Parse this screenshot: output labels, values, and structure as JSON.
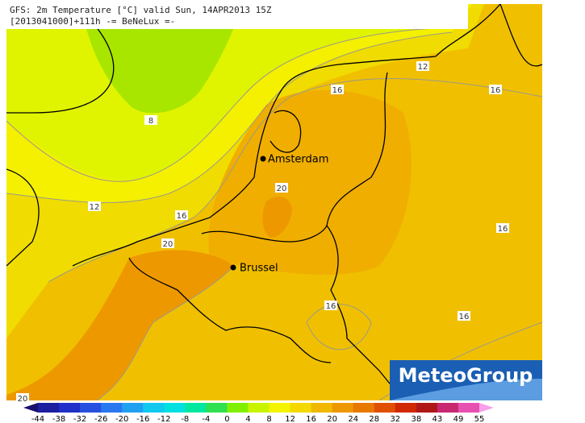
{
  "header": {
    "line1": "GFS: 2m Temperature [°C] valid Sun, 14APR2013 15Z",
    "line2": "[2013041000]+111h -= BeNeLux =-"
  },
  "cities": [
    {
      "label": "Amsterdam"
    },
    {
      "label": "Brussel"
    }
  ],
  "contour_labels": [
    12,
    16,
    16,
    8,
    12,
    16,
    20,
    20,
    16,
    16,
    16,
    20
  ],
  "legend": {
    "ticks": [
      -44,
      -38,
      -32,
      -26,
      -20,
      -16,
      -12,
      -8,
      -4,
      0,
      4,
      8,
      12,
      16,
      20,
      24,
      28,
      32,
      38,
      43,
      49,
      55
    ]
  },
  "logo": "MeteoGroup"
}
